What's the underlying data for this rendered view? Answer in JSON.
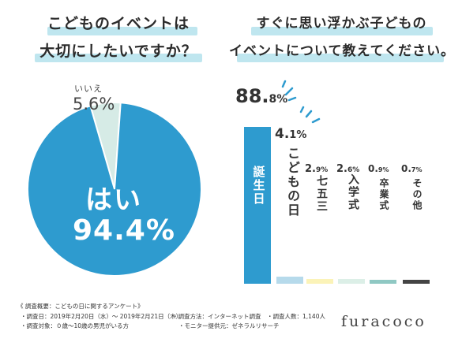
{
  "left": {
    "title_line1": "こどものイベントは",
    "title_line2": "大切にしたいですか？"
  },
  "right": {
    "title_line1": "すぐに思い浮かぶ子どもの",
    "title_line2": "イベントについて教えてください。"
  },
  "chart_data": [
    {
      "type": "pie",
      "slices": [
        {
          "label": "はい",
          "value": 94.4,
          "display": "94.4%",
          "color": "#2e9bcf"
        },
        {
          "label": "いいえ",
          "value": 5.6,
          "display": "5.6%",
          "color": "#d6ebe6"
        }
      ]
    },
    {
      "type": "bar",
      "categories": [
        "誕生日",
        "こどもの日",
        "七五三",
        "入学式",
        "卒業式",
        "その他"
      ],
      "values": [
        88.8,
        4.1,
        2.9,
        2.6,
        0.9,
        0.7
      ],
      "labels": [
        {
          "int": "88.",
          "dec": "8%"
        },
        {
          "int": "4.",
          "dec": "1%"
        },
        {
          "int": "2.",
          "dec": "9%"
        },
        {
          "int": "2.",
          "dec": "6%"
        },
        {
          "int": "0.",
          "dec": "9%"
        },
        {
          "int": "0.",
          "dec": "7%"
        }
      ],
      "colors": [
        "#2e9bcf",
        "#a9d3e8",
        "#fbf3b8",
        "#dcefe7",
        "#8fc8c3",
        "#444444"
      ],
      "ylim": [
        0,
        100
      ]
    }
  ],
  "footer": {
    "title": "《 調査概要：こどもの日に関するアンケート》",
    "date": "・調査日：2019年2月20日（水）～ 2019年2月21日（木）",
    "method": "・調査方法：インターネット調査",
    "count": "・調査人数：1,140人",
    "target": "・調査対象：０歳～10歳の男児がいる方",
    "provider": "・モニター提供元：ゼネラルリサーチ"
  },
  "brand": "furacoco",
  "accent": "#2e9bcf"
}
